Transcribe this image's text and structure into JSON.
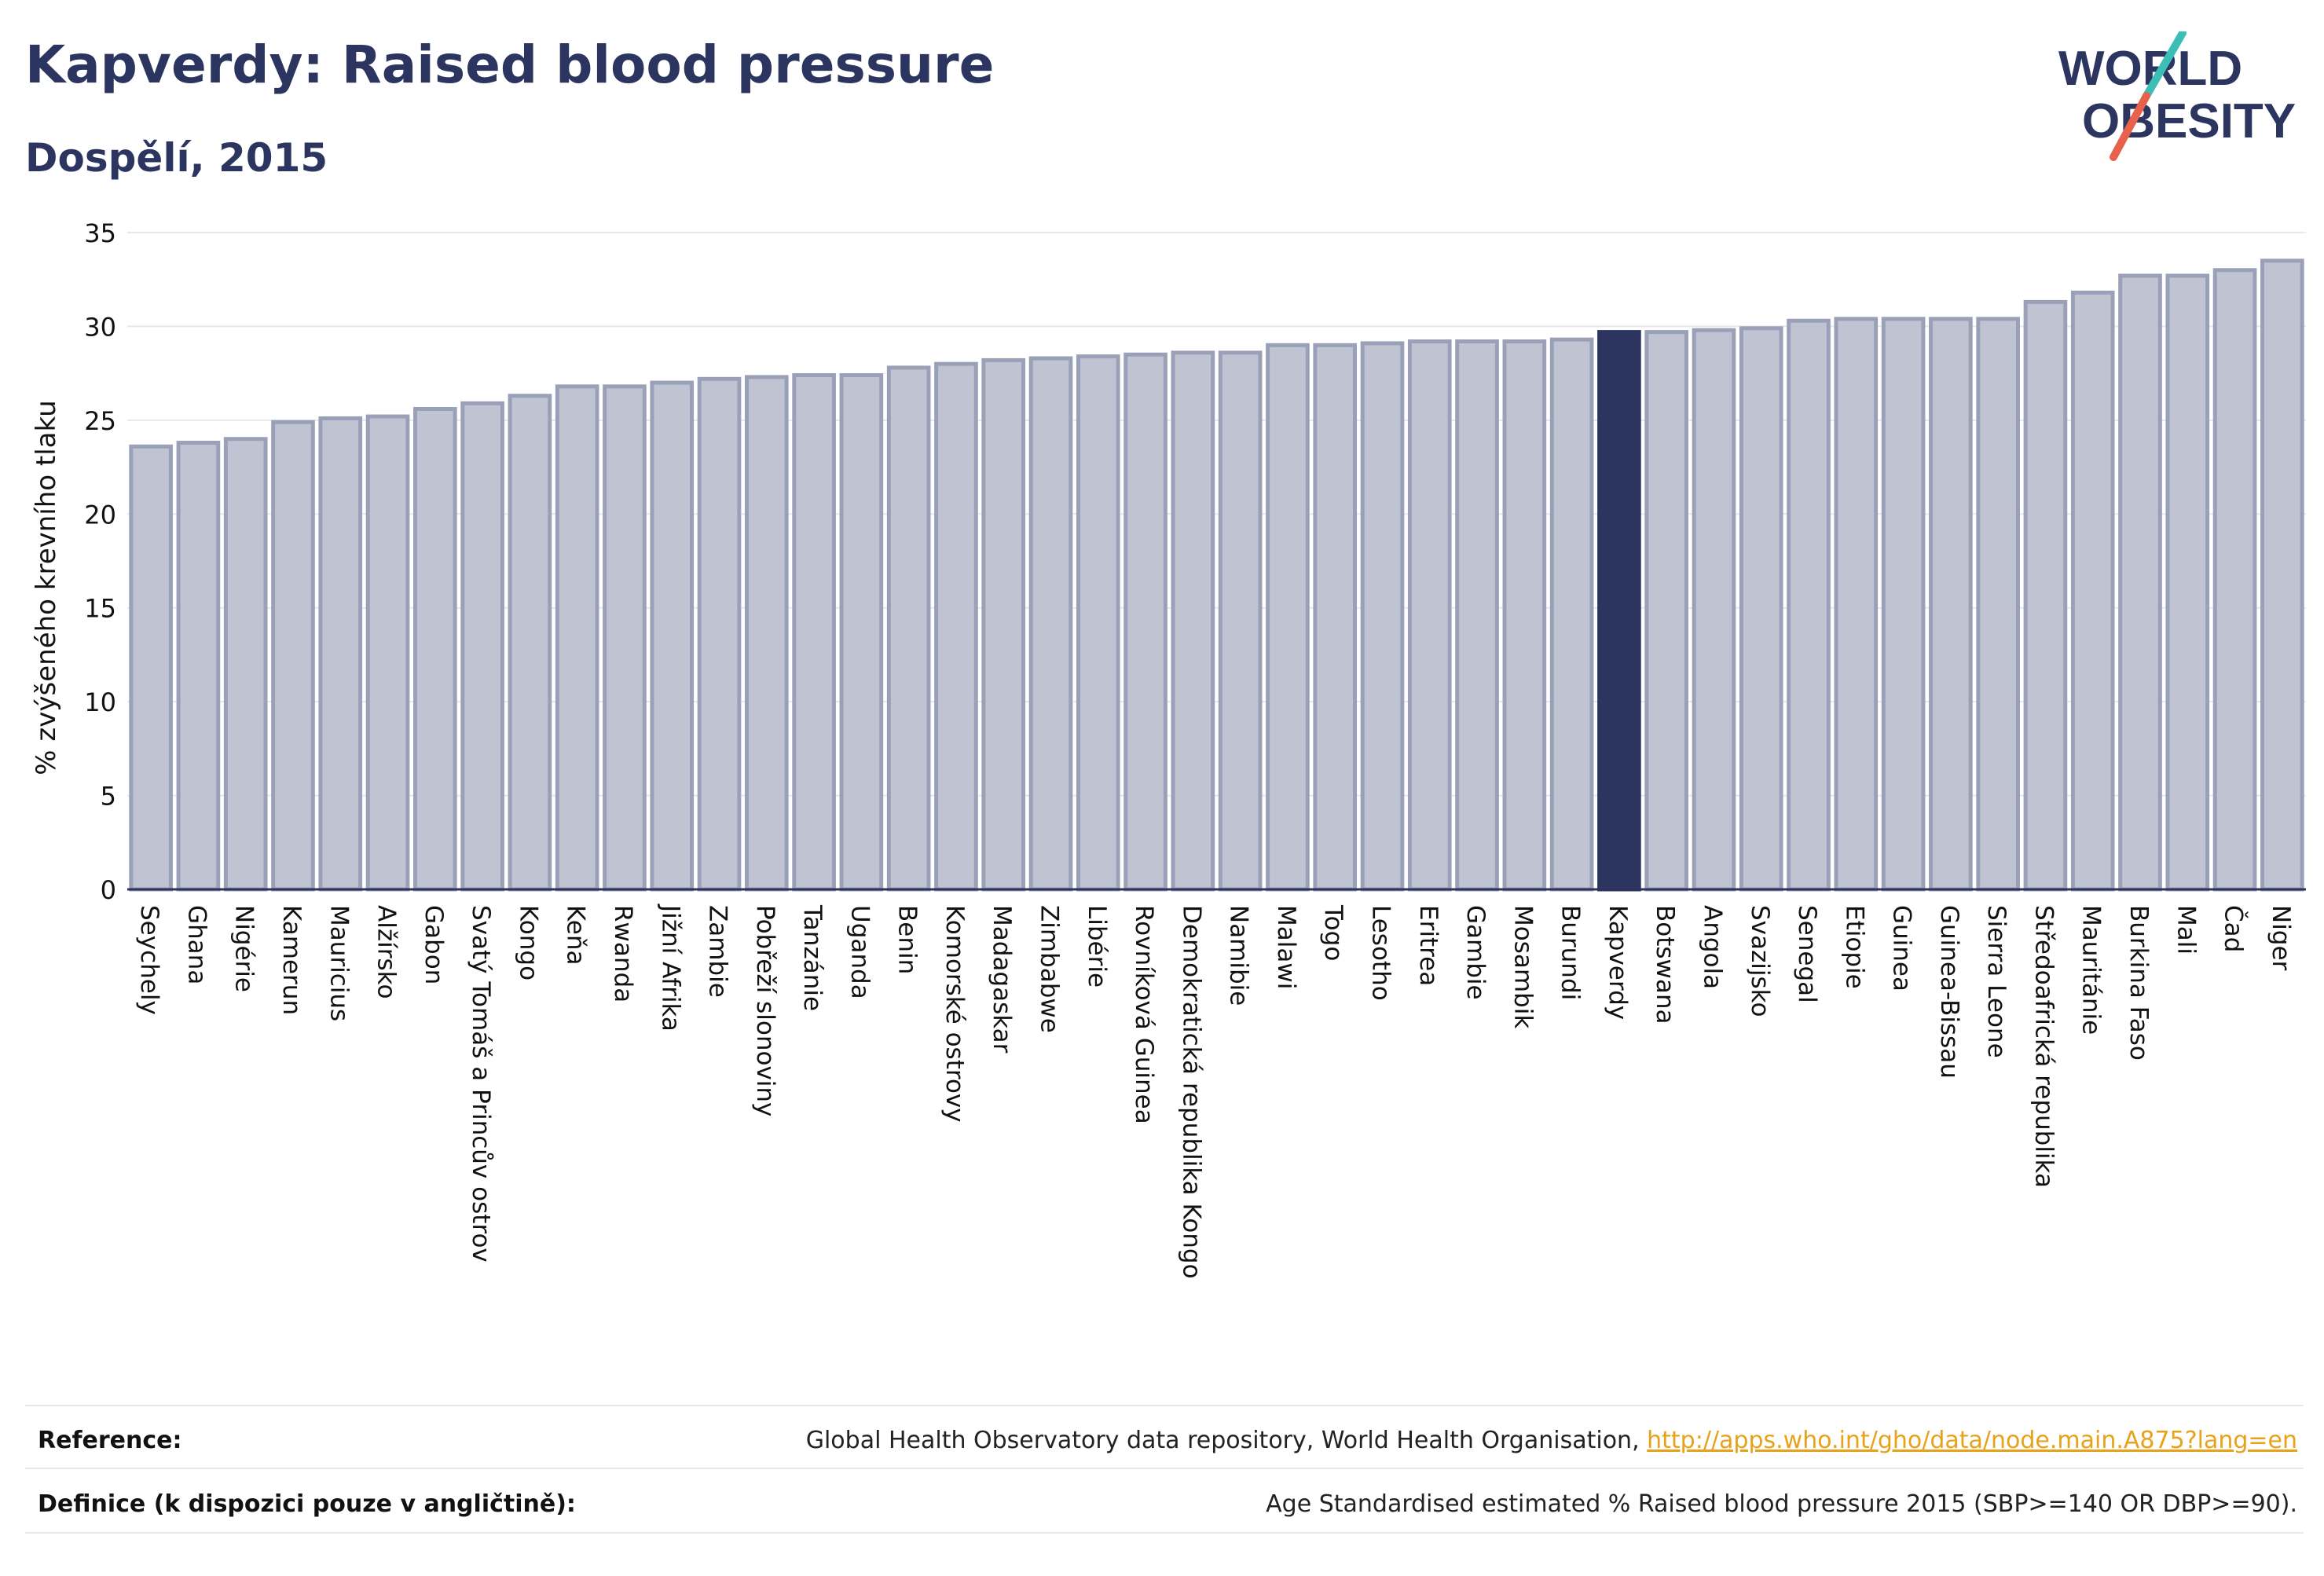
{
  "header": {
    "title": "Kapverdy: Raised blood pressure",
    "subtitle": "Dospělí, 2015"
  },
  "logo": {
    "line1": "WORLD",
    "line2": "OBESITY",
    "colors": {
      "text": "#2b3560",
      "slash_teal": "#3bbfb4",
      "slash_red": "#e8614d"
    }
  },
  "chart_data": {
    "type": "bar",
    "ylabel": "% zvýšeného krevního tlaku",
    "ylim": [
      0,
      35
    ],
    "yticks": [
      0,
      5,
      10,
      15,
      20,
      25,
      30,
      35
    ],
    "grid": true,
    "highlight": "Kapverdy",
    "colors": {
      "bar": "#c0c4d2",
      "bar_edge": "#9aa0b8",
      "highlight": "#2b3560",
      "grid": "#e6e8ee",
      "axis": "#2b3560"
    },
    "categories": [
      "Seychely",
      "Ghana",
      "Nigérie",
      "Kamerun",
      "Mauricius",
      "Alžírsko",
      "Gabon",
      "Svatý Tomáš a Princův ostrov",
      "Kongo",
      "Keňa",
      "Rwanda",
      "Jižní Afrika",
      "Zambie",
      "Pobřeží slonoviny",
      "Tanzánie",
      "Uganda",
      "Benin",
      "Komorské ostrovy",
      "Madagaskar",
      "Zimbabwe",
      "Libérie",
      "Rovníková Guinea",
      "Demokratická republika Kongo",
      "Namibie",
      "Malawi",
      "Togo",
      "Lesotho",
      "Eritrea",
      "Gambie",
      "Mosambik",
      "Burundi",
      "Kapverdy",
      "Botswana",
      "Angola",
      "Svazijsko",
      "Senegal",
      "Etiopie",
      "Guinea",
      "Guinea-Bissau",
      "Sierra Leone",
      "Středoafrická republika",
      "Mauritánie",
      "Burkina Faso",
      "Mali",
      "Čad",
      "Niger"
    ],
    "values": [
      23.6,
      23.8,
      24.0,
      24.9,
      25.1,
      25.2,
      25.6,
      25.9,
      26.3,
      26.8,
      26.8,
      27.0,
      27.2,
      27.3,
      27.4,
      27.4,
      27.8,
      28.0,
      28.2,
      28.3,
      28.4,
      28.5,
      28.6,
      28.6,
      29.0,
      29.0,
      29.1,
      29.2,
      29.2,
      29.2,
      29.3,
      29.7,
      29.7,
      29.8,
      29.9,
      30.3,
      30.4,
      30.4,
      30.4,
      30.4,
      31.3,
      31.8,
      32.7,
      32.7,
      33.0,
      33.5
    ]
  },
  "footer": {
    "reference_label": "Reference:",
    "reference_text": "Global Health Observatory data repository, World Health Organisation, ",
    "reference_link": "http://apps.who.int/gho/data/node.main.A875?lang=en",
    "definition_label": "Definice (k dispozici pouze v angličtině):",
    "definition_text": "Age Standardised estimated % Raised blood pressure 2015 (SBP>=140 OR DBP>=90)."
  }
}
